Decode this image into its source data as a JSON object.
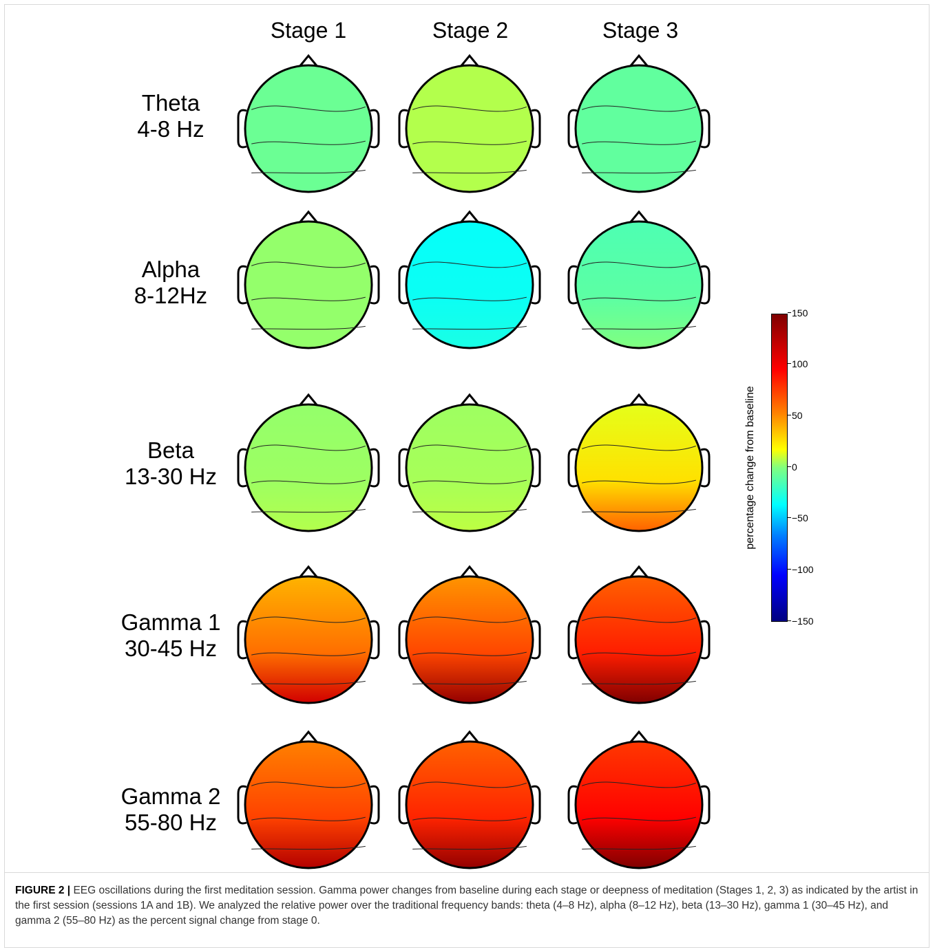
{
  "stages": [
    "Stage 1",
    "Stage 2",
    "Stage 3"
  ],
  "bands": [
    {
      "name": "Theta",
      "range": "4-8 Hz"
    },
    {
      "name": "Alpha",
      "range": "8-12Hz"
    },
    {
      "name": "Beta",
      "range": "13-30 Hz"
    },
    {
      "name": "Gamma 1",
      "range": "30-45 Hz"
    },
    {
      "name": "Gamma 2",
      "range": "55-80 Hz"
    }
  ],
  "maps": [
    [
      {
        "base": 0.48,
        "bottom": 0.0
      },
      {
        "base": 0.55,
        "bottom": 0.0
      },
      {
        "base": 0.47,
        "bottom": 0.0
      }
    ],
    [
      {
        "base": 0.52,
        "bottom": 0.0
      },
      {
        "base": 0.38,
        "bottom": 0.02
      },
      {
        "base": 0.45,
        "bottom": 0.05
      }
    ],
    [
      {
        "base": 0.52,
        "bottom": 0.03
      },
      {
        "base": 0.53,
        "bottom": 0.03
      },
      {
        "base": 0.6,
        "bottom": 0.18
      }
    ],
    [
      {
        "base": 0.7,
        "bottom": 0.22
      },
      {
        "base": 0.73,
        "bottom": 0.25
      },
      {
        "base": 0.78,
        "bottom": 0.22
      }
    ],
    [
      {
        "base": 0.75,
        "bottom": 0.2
      },
      {
        "base": 0.78,
        "bottom": 0.2
      },
      {
        "base": 0.82,
        "bottom": 0.18
      }
    ]
  ],
  "colorbar": {
    "label": "percentage change from baseline",
    "ticks": [
      "150",
      "100",
      "50",
      "0",
      "−50",
      "−100",
      "−150"
    ]
  },
  "caption": {
    "figure_label": "FIGURE 2 |",
    "text": "EEG oscillations during the first meditation session. Gamma power changes from baseline during each stage or deepness of meditation (Stages 1, 2, 3) as indicated by the artist in the first session (sessions 1A and 1B). We analyzed the relative power over the traditional frequency bands: theta (4–8 Hz), alpha (8–12 Hz), beta (13–30 Hz), gamma 1 (30–45 Hz), and gamma 2 (55–80 Hz) as the percent signal change from stage 0."
  }
}
